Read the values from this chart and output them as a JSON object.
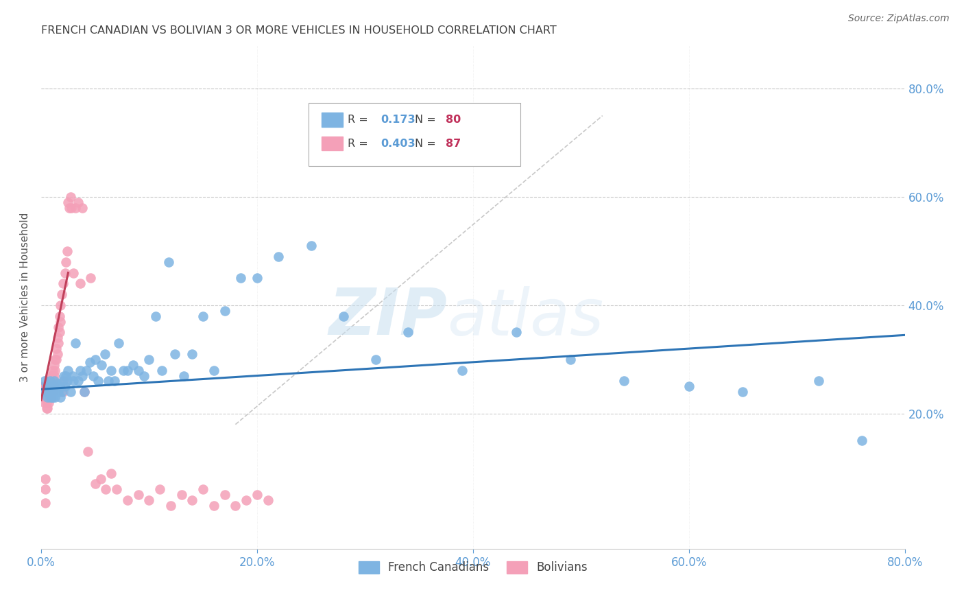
{
  "title": "FRENCH CANADIAN VS BOLIVIAN 3 OR MORE VEHICLES IN HOUSEHOLD CORRELATION CHART",
  "source": "Source: ZipAtlas.com",
  "ylabel": "3 or more Vehicles in Household",
  "xlim": [
    0.0,
    0.8
  ],
  "ylim": [
    -0.05,
    0.88
  ],
  "xticks": [
    0.0,
    0.2,
    0.4,
    0.6,
    0.8
  ],
  "yticks": [
    0.0,
    0.2,
    0.4,
    0.6,
    0.8
  ],
  "xtick_labels": [
    "0.0%",
    "20.0%",
    "40.0%",
    "60.0%",
    "80.0%"
  ],
  "right_ytick_labels": [
    "20.0%",
    "40.0%",
    "60.0%",
    "80.0%"
  ],
  "right_ytick_positions": [
    0.2,
    0.4,
    0.6,
    0.8
  ],
  "french_canadian_color": "#7eb4e2",
  "bolivian_color": "#f4a0b8",
  "french_canadian_line_color": "#2e75b6",
  "bolivian_line_color": "#c0405a",
  "french_canadian_R": 0.173,
  "french_canadian_N": 80,
  "bolivian_R": 0.403,
  "bolivian_N": 87,
  "watermark_zip": "ZIP",
  "watermark_atlas": "atlas",
  "background_color": "#ffffff",
  "grid_color": "#cccccc",
  "axis_color": "#5b9bd5",
  "title_color": "#404040",
  "label_color": "#555555",
  "fc_x": [
    0.003,
    0.004,
    0.005,
    0.006,
    0.007,
    0.007,
    0.008,
    0.008,
    0.009,
    0.009,
    0.01,
    0.01,
    0.011,
    0.011,
    0.012,
    0.012,
    0.013,
    0.013,
    0.014,
    0.015,
    0.015,
    0.016,
    0.017,
    0.018,
    0.019,
    0.02,
    0.021,
    0.022,
    0.023,
    0.024,
    0.025,
    0.027,
    0.029,
    0.03,
    0.032,
    0.034,
    0.036,
    0.038,
    0.04,
    0.042,
    0.045,
    0.048,
    0.05,
    0.053,
    0.056,
    0.059,
    0.062,
    0.065,
    0.068,
    0.072,
    0.076,
    0.08,
    0.085,
    0.09,
    0.095,
    0.1,
    0.106,
    0.112,
    0.118,
    0.124,
    0.132,
    0.14,
    0.15,
    0.16,
    0.17,
    0.185,
    0.2,
    0.22,
    0.25,
    0.28,
    0.31,
    0.34,
    0.39,
    0.44,
    0.49,
    0.54,
    0.6,
    0.65,
    0.72,
    0.76
  ],
  "fc_y": [
    0.26,
    0.24,
    0.25,
    0.23,
    0.25,
    0.24,
    0.23,
    0.26,
    0.24,
    0.25,
    0.23,
    0.24,
    0.25,
    0.23,
    0.24,
    0.26,
    0.25,
    0.23,
    0.25,
    0.24,
    0.255,
    0.24,
    0.25,
    0.23,
    0.24,
    0.26,
    0.27,
    0.25,
    0.27,
    0.26,
    0.28,
    0.24,
    0.27,
    0.26,
    0.33,
    0.26,
    0.28,
    0.27,
    0.24,
    0.28,
    0.295,
    0.27,
    0.3,
    0.26,
    0.29,
    0.31,
    0.26,
    0.28,
    0.26,
    0.33,
    0.28,
    0.28,
    0.29,
    0.28,
    0.27,
    0.3,
    0.38,
    0.28,
    0.48,
    0.31,
    0.27,
    0.31,
    0.38,
    0.28,
    0.39,
    0.45,
    0.45,
    0.49,
    0.51,
    0.38,
    0.3,
    0.35,
    0.28,
    0.35,
    0.3,
    0.26,
    0.25,
    0.24,
    0.26,
    0.15
  ],
  "bv_x": [
    0.001,
    0.002,
    0.002,
    0.003,
    0.003,
    0.003,
    0.004,
    0.004,
    0.004,
    0.004,
    0.005,
    0.005,
    0.005,
    0.005,
    0.006,
    0.006,
    0.006,
    0.006,
    0.007,
    0.007,
    0.007,
    0.007,
    0.008,
    0.008,
    0.008,
    0.009,
    0.009,
    0.009,
    0.01,
    0.01,
    0.01,
    0.011,
    0.011,
    0.011,
    0.012,
    0.012,
    0.012,
    0.013,
    0.013,
    0.014,
    0.014,
    0.015,
    0.015,
    0.016,
    0.016,
    0.017,
    0.017,
    0.018,
    0.018,
    0.019,
    0.02,
    0.02,
    0.021,
    0.022,
    0.023,
    0.024,
    0.025,
    0.026,
    0.027,
    0.028,
    0.03,
    0.032,
    0.034,
    0.036,
    0.038,
    0.04,
    0.043,
    0.046,
    0.05,
    0.055,
    0.06,
    0.065,
    0.07,
    0.08,
    0.09,
    0.1,
    0.11,
    0.12,
    0.13,
    0.14,
    0.15,
    0.16,
    0.17,
    0.18,
    0.19,
    0.2,
    0.21
  ],
  "bv_y": [
    0.24,
    0.25,
    0.24,
    0.25,
    0.23,
    0.22,
    0.08,
    0.24,
    0.06,
    0.035,
    0.25,
    0.23,
    0.22,
    0.21,
    0.25,
    0.24,
    0.23,
    0.21,
    0.26,
    0.25,
    0.23,
    0.22,
    0.26,
    0.24,
    0.23,
    0.27,
    0.25,
    0.23,
    0.27,
    0.26,
    0.24,
    0.28,
    0.26,
    0.24,
    0.29,
    0.27,
    0.25,
    0.3,
    0.28,
    0.32,
    0.3,
    0.34,
    0.31,
    0.36,
    0.33,
    0.38,
    0.35,
    0.4,
    0.37,
    0.42,
    0.24,
    0.44,
    0.26,
    0.46,
    0.48,
    0.5,
    0.59,
    0.58,
    0.6,
    0.58,
    0.46,
    0.58,
    0.59,
    0.44,
    0.58,
    0.24,
    0.13,
    0.45,
    0.07,
    0.08,
    0.06,
    0.09,
    0.06,
    0.04,
    0.05,
    0.04,
    0.06,
    0.03,
    0.05,
    0.04,
    0.06,
    0.03,
    0.05,
    0.03,
    0.04,
    0.05,
    0.04
  ],
  "fc_line_x": [
    0.0,
    0.8
  ],
  "fc_line_y": [
    0.245,
    0.345
  ],
  "bv_line_x": [
    0.0,
    0.025
  ],
  "bv_line_y": [
    0.225,
    0.46
  ],
  "diag_line_x": [
    0.18,
    0.52
  ],
  "diag_line_y": [
    0.18,
    0.75
  ]
}
